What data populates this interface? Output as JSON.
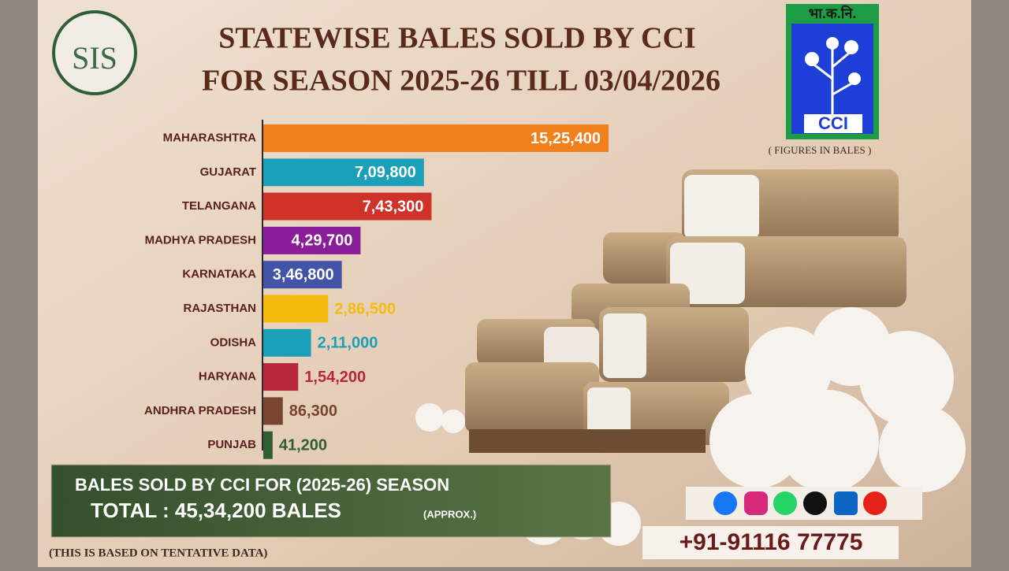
{
  "header": {
    "logo_left": "SIS",
    "title_lines": [
      "STATEWISE BALES SOLD BY CCI",
      "FOR SEASON 2025-26 TILL 03/04/2026"
    ],
    "logo_right_top": "भा.क.नि.",
    "logo_right_bottom": "CCI",
    "unit_note": "( FIGURES IN BALES )"
  },
  "chart_data": {
    "type": "bar",
    "orientation": "horizontal",
    "categories": [
      "MAHARASHTRA",
      "GUJARAT",
      "TELANGANA",
      "MADHYA PRADESH",
      "KARNATAKA",
      "RAJASTHAN",
      "ODISHA",
      "HARYANA",
      "ANDHRA PRADESH",
      "PUNJAB"
    ],
    "values": [
      1525400,
      709800,
      743300,
      429700,
      346800,
      286500,
      211000,
      154200,
      86300,
      41200
    ],
    "value_labels": [
      "15,25,400",
      "7,09,800",
      "7,43,300",
      "4,29,700",
      "3,46,800",
      "2,86,500",
      "2,11,000",
      "1,54,200",
      "86,300",
      "41,200"
    ],
    "colors": [
      "#f07f1c",
      "#1aa0b8",
      "#cf3228",
      "#8a1d98",
      "#4353a8",
      "#f5bc10",
      "#1aa0b8",
      "#b8283a",
      "#7a4530",
      "#2f5e30"
    ]
  },
  "summary": {
    "line1": "BALES SOLD BY CCI FOR (2025-26) SEASON",
    "line2": "TOTAL : 45,34,200 BALES",
    "approx": "(APPROX.)"
  },
  "footnote": "(THIS IS BASED ON TENTATIVE DATA)",
  "phone": "+91-91116 77775"
}
